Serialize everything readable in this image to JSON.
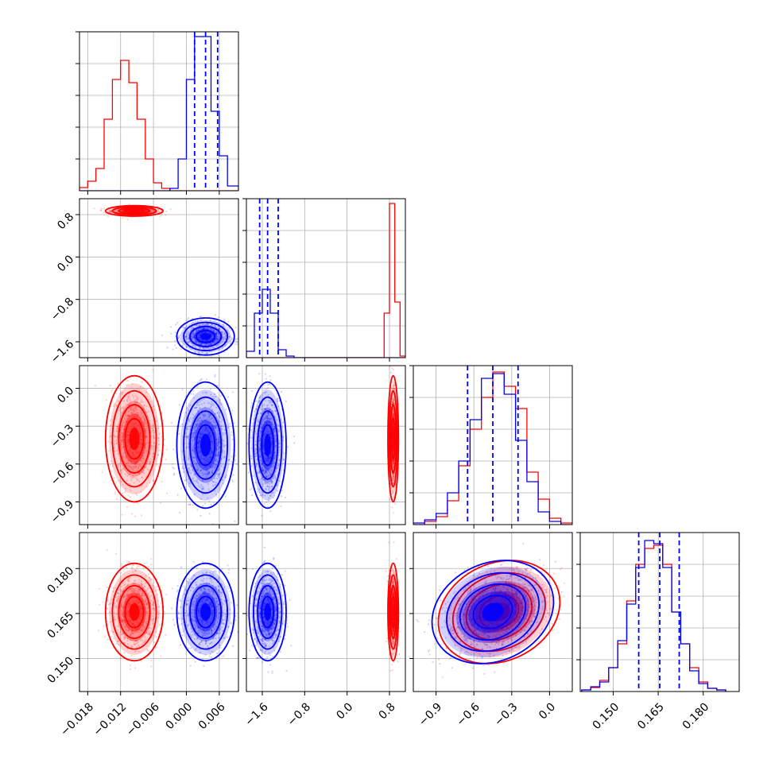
{
  "chart_data": {
    "type": "corner",
    "title": "",
    "colors": {
      "series_a": "#0000ff",
      "series_b": "#ff0000"
    },
    "grid": true,
    "legend": "none",
    "parameters": [
      {
        "index": 0,
        "range": [
          -0.0195,
          0.0095
        ],
        "ticks": [
          -0.018,
          -0.012,
          -0.006,
          0.0,
          0.006
        ],
        "tick_labels": [
          "−0.018",
          "−0.012",
          "−0.006",
          "0.000",
          "0.006"
        ],
        "label": ""
      },
      {
        "index": 1,
        "range": [
          -1.9,
          1.1
        ],
        "ticks": [
          -1.6,
          -0.8,
          0.0,
          0.8
        ],
        "tick_labels": [
          "−1.6",
          "−0.8",
          "0.0",
          "0.8"
        ],
        "label": ""
      },
      {
        "index": 2,
        "range": [
          -1.08,
          0.18
        ],
        "ticks": [
          -0.9,
          -0.6,
          -0.3,
          0.0
        ],
        "tick_labels": [
          "−0.9",
          "−0.6",
          "−0.3",
          "0.0"
        ],
        "label": ""
      },
      {
        "index": 3,
        "range": [
          0.139,
          0.192
        ],
        "ticks": [
          0.15,
          0.165,
          0.18
        ],
        "tick_labels": [
          "0.150",
          "0.165",
          "0.180"
        ],
        "label": ""
      }
    ],
    "series": [
      {
        "name": "",
        "color": "#0000ff",
        "means": [
          0.0035,
          -1.5,
          -0.45,
          0.1655
        ],
        "sds": [
          0.0021,
          0.14,
          0.2,
          0.0065
        ],
        "quantiles": [
          [
            0.0015,
            0.0035,
            0.0057
          ],
          [
            -1.65,
            -1.5,
            -1.3
          ],
          [
            -0.65,
            -0.45,
            -0.25
          ],
          [
            0.1585,
            0.1655,
            0.172
          ]
        ],
        "correlations": [
          [
            2,
            3,
            0.4
          ]
        ]
      },
      {
        "name": "",
        "color": "#ff0000",
        "means": [
          -0.0095,
          0.87,
          -0.4,
          0.1655
        ],
        "sds": [
          0.0021,
          0.04,
          0.2,
          0.0065
        ],
        "correlations": [
          [
            2,
            3,
            0.4
          ]
        ]
      }
    ],
    "histograms": [
      {
        "param": 0,
        "edges": [
          -0.0195,
          -0.018,
          -0.0165,
          -0.015,
          -0.0135,
          -0.012,
          -0.0105,
          -0.009,
          -0.0075,
          -0.006,
          -0.0045,
          -0.003,
          -0.0015,
          0.0,
          0.0015,
          0.003,
          0.0045,
          0.006,
          0.0075,
          0.0095
        ],
        "counts": {
          "blue": [
            0,
            0,
            0,
            0,
            0,
            0,
            0,
            0,
            0,
            0,
            0,
            0.015,
            0.2,
            0.7,
            0.97,
            0.97,
            0.5,
            0.22,
            0.03
          ],
          "red": [
            0.02,
            0.06,
            0.14,
            0.45,
            0.7,
            0.82,
            0.68,
            0.45,
            0.2,
            0.05,
            0.015,
            0,
            0,
            0,
            0,
            0,
            0,
            0,
            0
          ]
        }
      },
      {
        "param": 1,
        "edges": [
          -1.9,
          -1.75,
          -1.6,
          -1.45,
          -1.3,
          -1.15,
          -1.0,
          -0.85,
          -0.7,
          0.7,
          0.8,
          0.9,
          1.0,
          1.1
        ],
        "counts": {
          "blue": [
            0.04,
            0.28,
            0.43,
            0.28,
            0.05,
            0.01,
            0,
            0,
            0,
            0,
            0,
            0,
            0
          ],
          "red": [
            0,
            0,
            0,
            0,
            0,
            0,
            0,
            0,
            0,
            0.28,
            0.97,
            0.35,
            0.01
          ]
        }
      },
      {
        "param": 2,
        "edges": [
          -1.08,
          -0.99,
          -0.9,
          -0.81,
          -0.72,
          -0.63,
          -0.54,
          -0.45,
          -0.36,
          -0.27,
          -0.18,
          -0.09,
          0.0,
          0.09,
          0.18
        ],
        "counts": {
          "blue": [
            0.01,
            0.03,
            0.07,
            0.2,
            0.4,
            0.66,
            0.92,
            0.95,
            0.82,
            0.53,
            0.27,
            0.08,
            0.02,
            0
          ],
          "red": [
            0,
            0.02,
            0.05,
            0.15,
            0.37,
            0.6,
            0.8,
            0.96,
            0.87,
            0.73,
            0.33,
            0.16,
            0.04,
            0.01
          ]
        }
      },
      {
        "param": 3,
        "edges": [
          0.1395,
          0.1425,
          0.1455,
          0.1485,
          0.1515,
          0.1545,
          0.1575,
          0.1605,
          0.1635,
          0.1665,
          0.1695,
          0.1725,
          0.1755,
          0.1785,
          0.1815,
          0.1845,
          0.1875
        ],
        "counts": {
          "blue": [
            0.01,
            0.03,
            0.06,
            0.15,
            0.32,
            0.55,
            0.78,
            0.95,
            0.93,
            0.78,
            0.5,
            0.3,
            0.13,
            0.05,
            0.02,
            0.01
          ],
          "red": [
            0.01,
            0.025,
            0.07,
            0.15,
            0.3,
            0.57,
            0.8,
            0.9,
            0.92,
            0.8,
            0.5,
            0.3,
            0.15,
            0.06,
            0.02,
            0.01
          ]
        }
      }
    ]
  }
}
